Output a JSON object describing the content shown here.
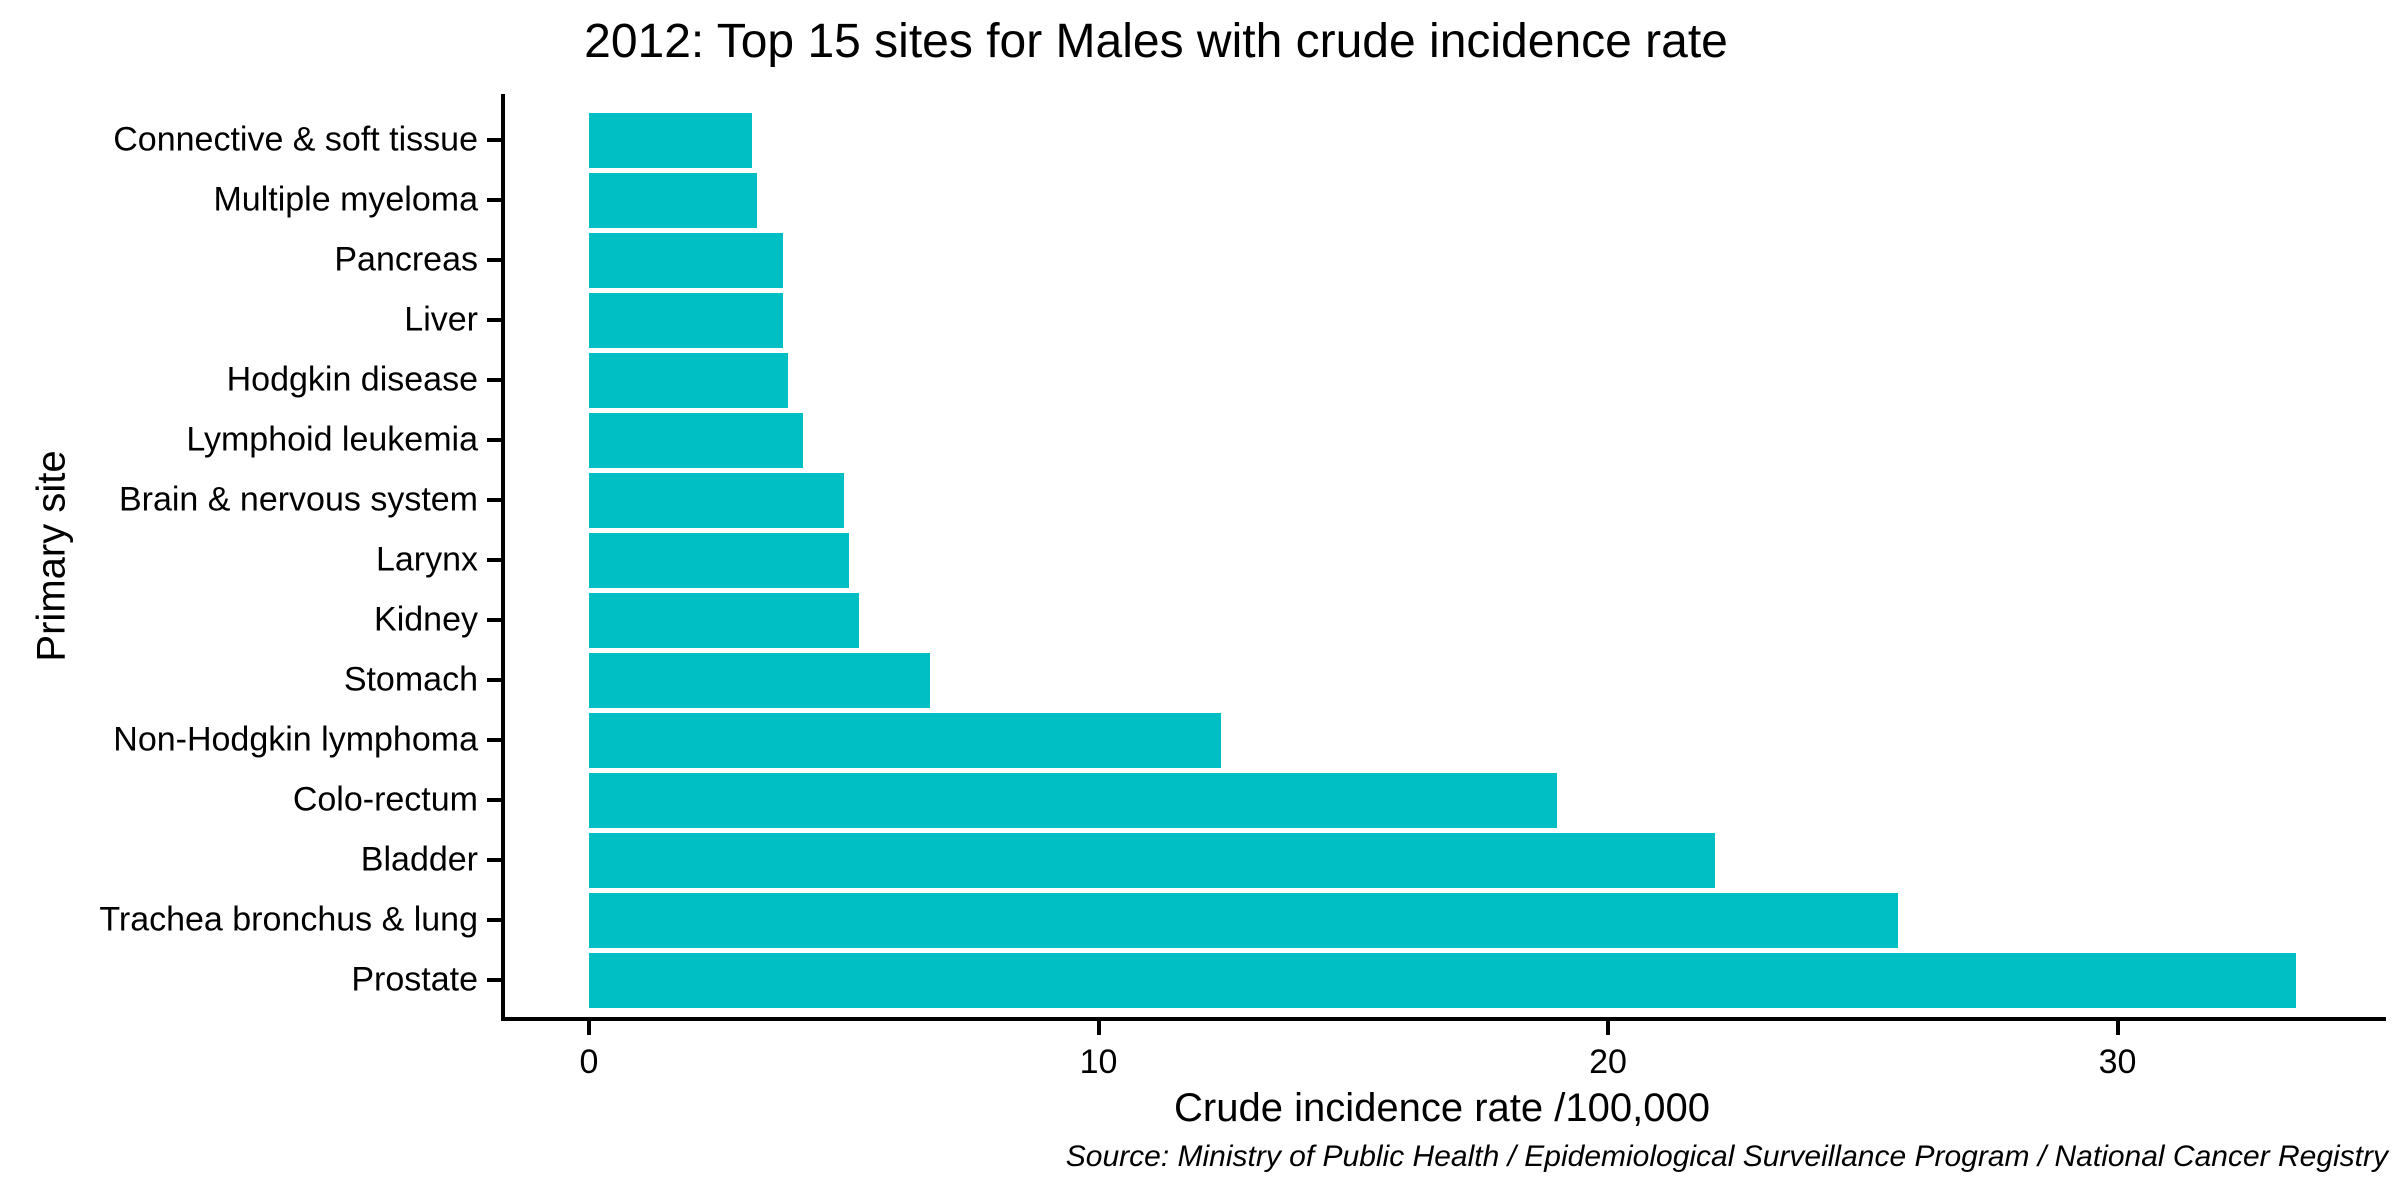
{
  "title": "2012: Top 15 sites for Males with crude incidence rate",
  "chart_data": {
    "type": "bar",
    "orientation": "horizontal",
    "title": "2012: Top 15 sites for Males with crude incidence rate",
    "xlabel": "Crude incidence rate /100,000",
    "ylabel": "Primary site",
    "source": "Source: Ministry of Public Health / Epidemiological Surveillance Program / National Cancer Registry",
    "categories": [
      "Connective & soft tissue",
      "Multiple myeloma",
      "Pancreas",
      "Liver",
      "Hodgkin disease",
      "Lymphoid leukemia",
      "Brain & nervous system",
      "Larynx",
      "Kidney",
      "Stomach",
      "Non-Hodgkin lymphoma",
      "Colo-rectum",
      "Bladder",
      "Trachea bronchus & lung",
      "Prostate"
    ],
    "values": [
      3.2,
      3.3,
      3.8,
      3.8,
      3.9,
      4.2,
      5.0,
      5.1,
      5.3,
      6.7,
      12.4,
      19.0,
      22.1,
      25.7,
      33.5
    ],
    "xticks": [
      0,
      10,
      20,
      30
    ],
    "xlim": [
      0,
      35.2
    ],
    "grid": false,
    "legend": "none",
    "bar_color": "#00BFC4",
    "axis_color": "#000000",
    "background_color": "#FFFFFF"
  }
}
